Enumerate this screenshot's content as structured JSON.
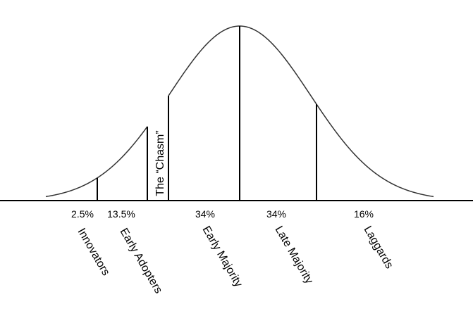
{
  "chasm_label": "The “Chasm”",
  "segments": [
    {
      "percent": "2.5%",
      "label": "Innovators"
    },
    {
      "percent": "13.5%",
      "label": "Early Adopters"
    },
    {
      "percent": "34%",
      "label": "Early Majority"
    },
    {
      "percent": "34%",
      "label": "Late Majority"
    },
    {
      "percent": "16%",
      "label": "Laggards"
    }
  ]
}
